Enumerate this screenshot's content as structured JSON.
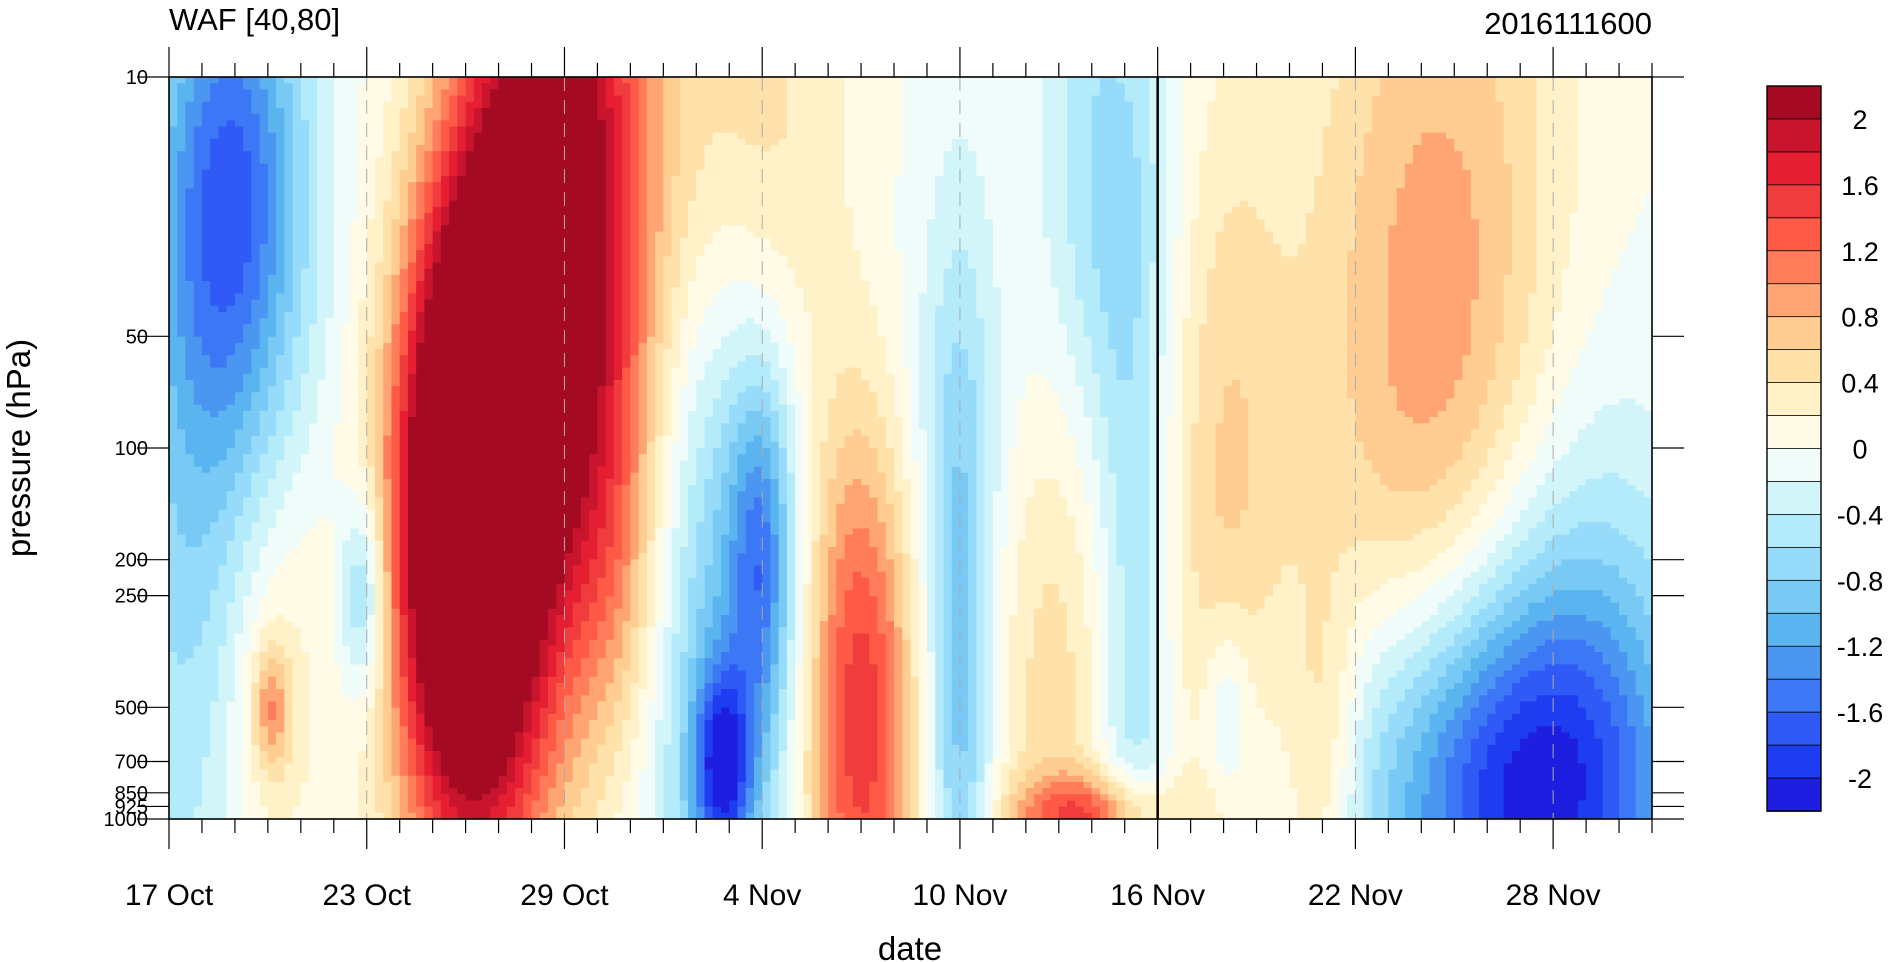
{
  "title_left": "WAF [40,80]",
  "title_right": "2016111600",
  "chart_data": {
    "type": "heatmap",
    "subtype": "filled-contour",
    "title": "WAF [40,80]",
    "timestamp": "2016111600",
    "xlabel": "date",
    "ylabel": "pressure (hPa)",
    "x_ticks": [
      "17 Oct",
      "23 Oct",
      "29 Oct",
      "4 Nov",
      "10 Nov",
      "16 Nov",
      "22 Nov",
      "28 Nov"
    ],
    "x_tick_days": [
      0,
      6,
      12,
      18,
      24,
      30,
      36,
      42
    ],
    "x_range_days": [
      0,
      45
    ],
    "y_ticks": [
      10,
      50,
      100,
      200,
      250,
      500,
      700,
      850,
      925,
      1000
    ],
    "y_tick_labels": [
      "10",
      "50",
      "100",
      "200",
      "250",
      "500",
      "700",
      "850",
      "925",
      "1000"
    ],
    "y_scale": "log",
    "y_inverted": true,
    "ylim": [
      10,
      1000
    ],
    "vertical_marker": "16 Nov",
    "grid": "dashed vertical lines at x ticks",
    "colorbar": {
      "position": "right",
      "levels": [
        -2.2,
        -2,
        -1.8,
        -1.6,
        -1.4,
        -1.2,
        -1,
        -0.8,
        -0.6,
        -0.4,
        -0.2,
        0,
        0.2,
        0.4,
        0.6,
        0.8,
        1,
        1.2,
        1.4,
        1.6,
        1.8,
        2,
        2.2
      ],
      "label_values": [
        2,
        1.6,
        1.2,
        0.8,
        0.4,
        0,
        -0.4,
        -0.8,
        -1.2,
        -1.6,
        -2
      ],
      "colors": [
        "#1e1ee0",
        "#1e3cf0",
        "#2f5af5",
        "#3c78f5",
        "#4b96f0",
        "#5ab4f0",
        "#78caf5",
        "#96dcfa",
        "#b4ebfa",
        "#d2f5fa",
        "#f0fcfa",
        "#fffbe6",
        "#fff2c8",
        "#ffe1aa",
        "#ffcd91",
        "#ffa573",
        "#ff7d5a",
        "#ff5a46",
        "#f03c3c",
        "#e61e32",
        "#c8142d",
        "#a50a23"
      ]
    },
    "features": [
      {
        "day": 2.0,
        "p": 20,
        "value": -1.4,
        "sd": 1.6,
        "sp": 0.5
      },
      {
        "day": 0.8,
        "p": 150,
        "value": -0.7,
        "sd": 1.8,
        "sp": 0.9
      },
      {
        "day": 3.0,
        "p": 450,
        "value": 0.5,
        "sd": 1.2,
        "sp": 0.45
      },
      {
        "day": 3.1,
        "p": 500,
        "value": 0.8,
        "sd": 0.4,
        "sp": 0.12
      },
      {
        "day": 5.9,
        "p": 250,
        "value": -0.9,
        "sd": 0.5,
        "sp": 0.2
      },
      {
        "day": 8.6,
        "p": 140,
        "value": 2.3,
        "sd": 1.4,
        "sp": 0.55
      },
      {
        "day": 9.5,
        "p": 550,
        "value": 1.1,
        "sd": 1.7,
        "sp": 0.55
      },
      {
        "day": 12.0,
        "p": 25,
        "value": 2.4,
        "sd": 1.9,
        "sp": 0.75
      },
      {
        "day": 10.0,
        "p": 60,
        "value": 1.4,
        "sd": 1.5,
        "sp": 0.6
      },
      {
        "day": 13.6,
        "p": 220,
        "value": 0.4,
        "sd": 1.0,
        "sp": 0.35
      },
      {
        "day": 16.6,
        "p": 380,
        "value": -0.9,
        "sd": 1.5,
        "sp": 0.9
      },
      {
        "day": 16.8,
        "p": 720,
        "value": -1.5,
        "sd": 0.6,
        "sp": 0.18
      },
      {
        "day": 18.0,
        "p": 200,
        "value": -1.1,
        "sd": 0.7,
        "sp": 0.35
      },
      {
        "day": 17.5,
        "p": 14,
        "value": 0.6,
        "sd": 2.0,
        "sp": 0.55
      },
      {
        "day": 21.0,
        "p": 500,
        "value": 1.6,
        "sd": 1.2,
        "sp": 0.6
      },
      {
        "day": 24.0,
        "p": 90,
        "value": -0.3,
        "sd": 3.0,
        "sp": 0.5
      },
      {
        "day": 24.0,
        "p": 550,
        "value": -0.9,
        "sd": 0.7,
        "sp": 0.8
      },
      {
        "day": 26.8,
        "p": 300,
        "value": 0.6,
        "sd": 1.4,
        "sp": 0.7
      },
      {
        "day": 28.0,
        "p": 980,
        "value": 1.2,
        "sd": 1.7,
        "sp": 0.08
      },
      {
        "day": 28.5,
        "p": 20,
        "value": -0.7,
        "sd": 1.4,
        "sp": 0.55
      },
      {
        "day": 29.3,
        "p": 500,
        "value": -0.6,
        "sd": 0.8,
        "sp": 0.75
      },
      {
        "day": 32.0,
        "p": 130,
        "value": 0.6,
        "sd": 1.4,
        "sp": 0.75
      },
      {
        "day": 32.1,
        "p": 500,
        "value": -0.5,
        "sd": 0.5,
        "sp": 0.18
      },
      {
        "day": 35.0,
        "p": 700,
        "value": 0.6,
        "sd": 0.8,
        "sp": 0.35
      },
      {
        "day": 38.6,
        "p": 55,
        "value": 1.0,
        "sd": 2.8,
        "sp": 0.95
      },
      {
        "day": 40.5,
        "p": 820,
        "value": -1.9,
        "sd": 3.5,
        "sp": 0.4
      },
      {
        "day": 42.5,
        "p": 450,
        "value": -0.7,
        "sd": 2.5,
        "sp": 0.7
      }
    ]
  }
}
